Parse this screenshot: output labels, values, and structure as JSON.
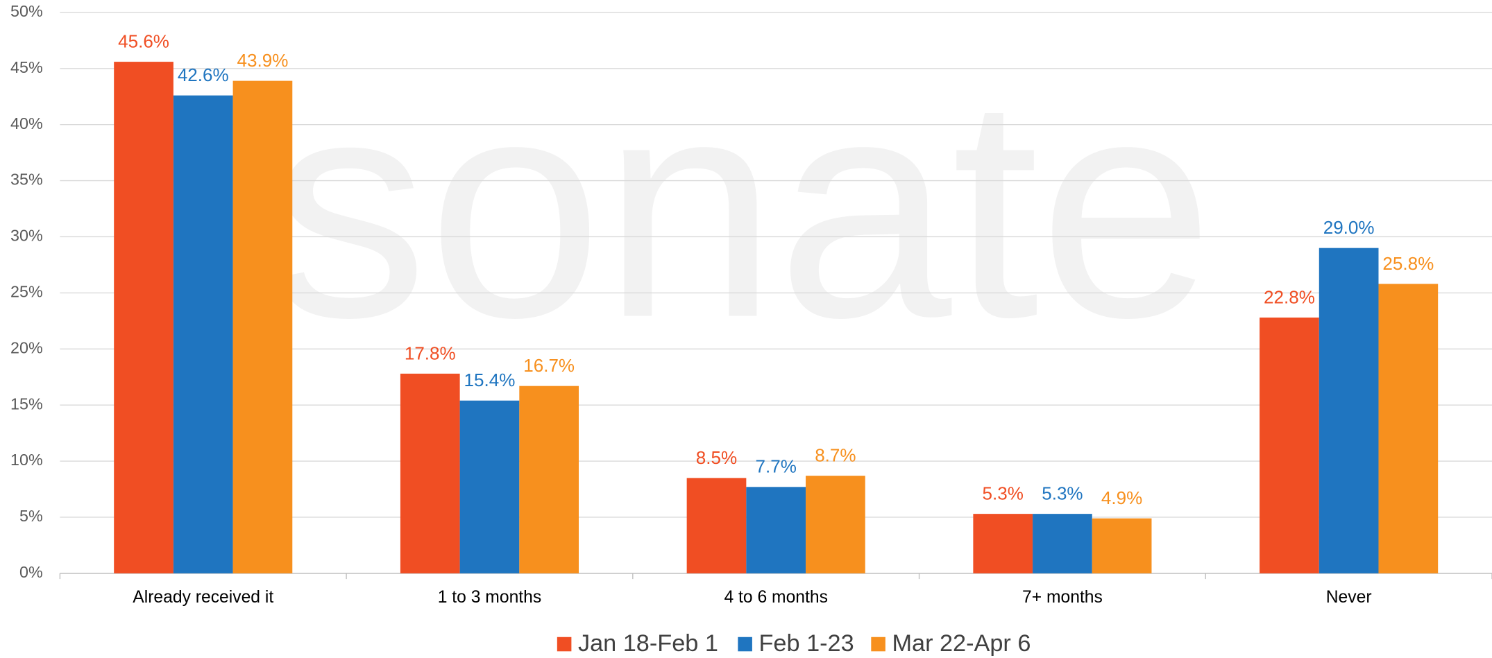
{
  "chart_data": {
    "type": "bar",
    "watermark": "sonate",
    "categories": [
      "Already received it",
      "1 to 3 months",
      "4 to 6 months",
      "7+ months",
      "Never"
    ],
    "series": [
      {
        "name": "Jan 18-Feb 1",
        "color": "#f04e23",
        "values": [
          45.6,
          17.8,
          8.5,
          5.3,
          22.8
        ],
        "value_labels": [
          "45.6%",
          "17.8%",
          "8.5%",
          "5.3%",
          "22.8%"
        ]
      },
      {
        "name": "Feb 1-23",
        "color": "#1f75c0",
        "values": [
          42.6,
          15.4,
          7.7,
          5.3,
          29.0
        ],
        "value_labels": [
          "42.6%",
          "15.4%",
          "7.7%",
          "5.3%",
          "29.0%"
        ]
      },
      {
        "name": "Mar 22-Apr 6",
        "color": "#f7901e",
        "values": [
          43.9,
          16.7,
          8.7,
          4.9,
          25.8
        ],
        "value_labels": [
          "43.9%",
          "16.7%",
          "8.7%",
          "4.9%",
          "25.8%"
        ]
      }
    ],
    "ylim": [
      0,
      50
    ],
    "yticks": [
      {
        "value": 0,
        "label": "0%"
      },
      {
        "value": 5,
        "label": "5%"
      },
      {
        "value": 10,
        "label": "10%"
      },
      {
        "value": 15,
        "label": "15%"
      },
      {
        "value": 20,
        "label": "20%"
      },
      {
        "value": 25,
        "label": "25%"
      },
      {
        "value": 30,
        "label": "30%"
      },
      {
        "value": 35,
        "label": "35%"
      },
      {
        "value": 40,
        "label": "40%"
      },
      {
        "value": 45,
        "label": "45%"
      },
      {
        "value": 50,
        "label": "50%"
      }
    ],
    "grid": true,
    "legend": "bottom"
  }
}
